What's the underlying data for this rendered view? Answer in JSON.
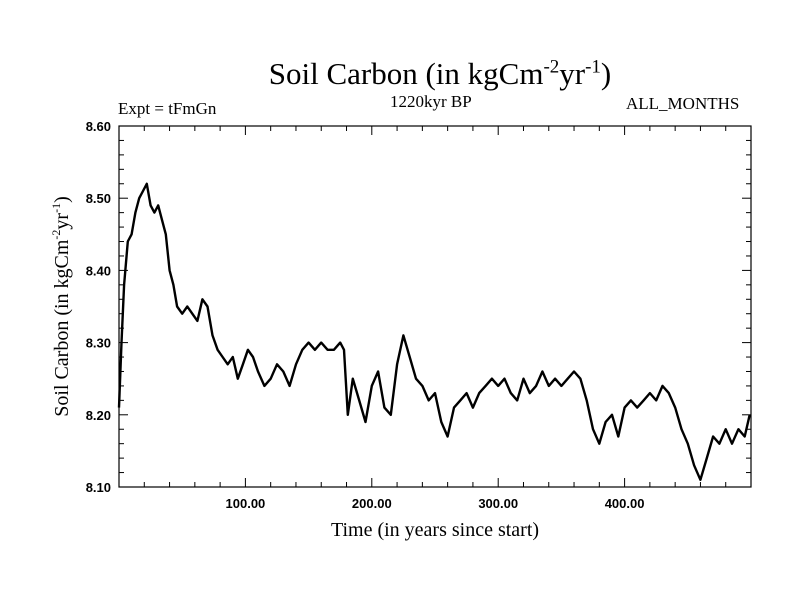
{
  "chart_data": {
    "type": "line",
    "title": "Soil Carbon (in kgCm",
    "title_sup1": "-2",
    "title_mid": "yr",
    "title_sup2": "-1",
    "title_end": ")",
    "subtitle_left": "Expt = tFmGn",
    "subtitle_center": "1220kyr BP",
    "subtitle_right": "ALL_MONTHS",
    "xlabel": "Time (in years since start)",
    "ylabel": "Soil Carbon (in kgCm",
    "ylabel_sup1": "-2",
    "ylabel_mid": "yr",
    "ylabel_sup2": "-1",
    "ylabel_end": ")",
    "xlim": [
      0,
      500
    ],
    "ylim": [
      8.1,
      8.6
    ],
    "xticks": [
      100,
      200,
      300,
      400
    ],
    "xtick_labels": [
      "100.00",
      "200.00",
      "300.00",
      "400.00"
    ],
    "yticks": [
      8.1,
      8.2,
      8.3,
      8.4,
      8.5,
      8.6
    ],
    "ytick_labels": [
      "8.10",
      "8.20",
      "8.30",
      "8.40",
      "8.50",
      "8.60"
    ],
    "line_color": "#000000",
    "series": [
      {
        "name": "Soil Carbon",
        "x": [
          0,
          2,
          4,
          7,
          10,
          13,
          16,
          19,
          22,
          25,
          28,
          31,
          34,
          37,
          40,
          43,
          46,
          50,
          54,
          58,
          62,
          66,
          70,
          74,
          78,
          82,
          86,
          90,
          94,
          98,
          102,
          106,
          110,
          115,
          120,
          125,
          130,
          135,
          140,
          145,
          150,
          155,
          160,
          165,
          170,
          175,
          178,
          181,
          185,
          190,
          195,
          200,
          205,
          210,
          215,
          220,
          225,
          230,
          235,
          240,
          245,
          250,
          255,
          260,
          265,
          270,
          275,
          280,
          285,
          290,
          295,
          300,
          305,
          310,
          315,
          320,
          325,
          330,
          335,
          340,
          345,
          350,
          355,
          360,
          365,
          370,
          375,
          380,
          385,
          390,
          395,
          400,
          405,
          410,
          415,
          420,
          425,
          430,
          435,
          440,
          445,
          450,
          455,
          460,
          465,
          470,
          475,
          480,
          485,
          490,
          495,
          499
        ],
        "values": [
          8.21,
          8.3,
          8.38,
          8.44,
          8.45,
          8.48,
          8.5,
          8.51,
          8.52,
          8.49,
          8.48,
          8.49,
          8.47,
          8.45,
          8.4,
          8.38,
          8.35,
          8.34,
          8.35,
          8.34,
          8.33,
          8.36,
          8.35,
          8.31,
          8.29,
          8.28,
          8.27,
          8.28,
          8.25,
          8.27,
          8.29,
          8.28,
          8.26,
          8.24,
          8.25,
          8.27,
          8.26,
          8.24,
          8.27,
          8.29,
          8.3,
          8.29,
          8.3,
          8.29,
          8.29,
          8.3,
          8.29,
          8.2,
          8.25,
          8.22,
          8.19,
          8.24,
          8.26,
          8.21,
          8.2,
          8.27,
          8.31,
          8.28,
          8.25,
          8.24,
          8.22,
          8.23,
          8.19,
          8.17,
          8.21,
          8.22,
          8.23,
          8.21,
          8.23,
          8.24,
          8.25,
          8.24,
          8.25,
          8.23,
          8.22,
          8.25,
          8.23,
          8.24,
          8.26,
          8.24,
          8.25,
          8.24,
          8.25,
          8.26,
          8.25,
          8.22,
          8.18,
          8.16,
          8.19,
          8.2,
          8.17,
          8.21,
          8.22,
          8.21,
          8.22,
          8.23,
          8.22,
          8.24,
          8.23,
          8.21,
          8.18,
          8.16,
          8.13,
          8.11,
          8.14,
          8.17,
          8.16,
          8.18,
          8.16,
          8.18,
          8.17,
          8.2
        ]
      }
    ]
  }
}
